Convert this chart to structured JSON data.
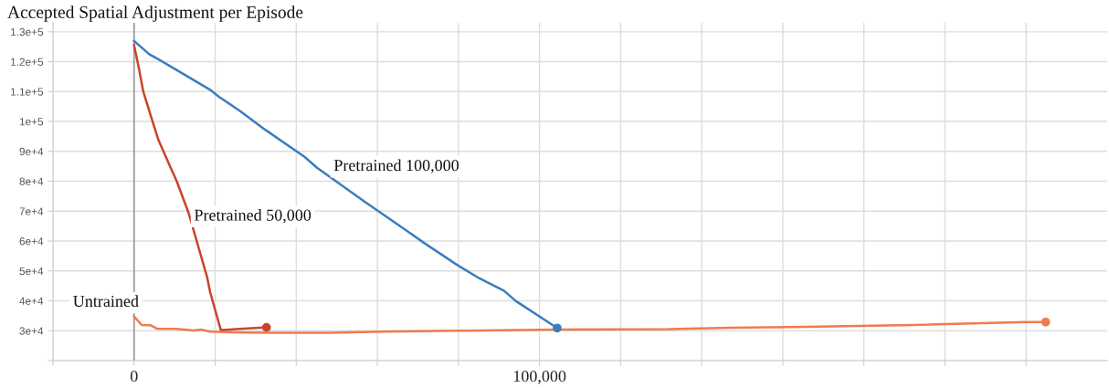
{
  "chart_data": {
    "type": "line",
    "title": "Accepted Spatial Adjustment per Episode",
    "xlim": [
      -20000,
      240000
    ],
    "xticks": [
      {
        "value": -20000,
        "label": null
      },
      0,
      {
        "value": 20000,
        "label": null
      },
      {
        "value": 40000,
        "label": null
      },
      {
        "value": 60000,
        "label": null
      },
      {
        "value": 80000,
        "label": null
      },
      {
        "value": 100000,
        "label": "100,000"
      },
      {
        "value": 120000,
        "label": null
      },
      {
        "value": 140000,
        "label": null
      },
      {
        "value": 160000,
        "label": null
      },
      {
        "value": 180000,
        "label": null
      },
      {
        "value": 200000,
        "label": null
      },
      {
        "value": 220000,
        "label": null
      }
    ],
    "ylim": [
      20000,
      133000
    ],
    "yticks": [
      {
        "value": 20000,
        "label": null
      },
      {
        "value": 30000,
        "label": "3e+4"
      },
      {
        "value": 40000,
        "label": "4e+4"
      },
      {
        "value": 50000,
        "label": "5e+4"
      },
      {
        "value": 60000,
        "label": "6e+4"
      },
      {
        "value": 70000,
        "label": "7e+4"
      },
      {
        "value": 80000,
        "label": "8e+4"
      },
      {
        "value": 90000,
        "label": "9e+4"
      },
      {
        "value": 100000,
        "label": "1e+5"
      },
      {
        "value": 110000,
        "label": "1.1e+5"
      },
      {
        "value": 120000,
        "label": "1.2e+5"
      },
      {
        "value": 130000,
        "label": "1.3e+5"
      }
    ],
    "grid": true,
    "ref_lines": [
      {
        "axis": "x",
        "value": 0,
        "color": "#999999"
      }
    ],
    "series": [
      {
        "name": "Untrained",
        "color": "#ef7b4d",
        "x": [
          0,
          1870,
          4120,
          5630,
          10500,
          14640,
          16500,
          18760,
          27030,
          34530,
          48040,
          61560,
          79570,
          104350,
          132100,
          139600,
          147150,
          162160,
          192200,
          219950,
          224840
        ],
        "values": [
          34800,
          31900,
          31800,
          30700,
          30600,
          30100,
          30400,
          29700,
          29400,
          29300,
          29300,
          29700,
          30000,
          30400,
          30500,
          30800,
          31000,
          31200,
          31900,
          32900,
          32900
        ]
      },
      {
        "name": "Pretrained 50,000",
        "color": "#c9442a",
        "x": [
          0,
          1130,
          2250,
          4120,
          6000,
          9000,
          10500,
          13450,
          18000,
          18760,
          21400,
          27030,
          32660
        ],
        "values": [
          125500,
          118200,
          110100,
          101900,
          93800,
          84600,
          80100,
          69400,
          48000,
          42900,
          30200,
          30700,
          31100
        ]
      },
      {
        "name": "Pretrained 100,000",
        "color": "#3a7dbf",
        "x": [
          0,
          3740,
          6760,
          18760,
          21000,
          26260,
          32270,
          42030,
          45050,
          57050,
          65300,
          71700,
          79570,
          85200,
          91200,
          94200,
          104350
        ],
        "values": [
          126900,
          122500,
          120200,
          110600,
          108200,
          103400,
          97300,
          88200,
          84600,
          73000,
          65300,
          59200,
          52100,
          47500,
          43400,
          39900,
          30900
        ]
      }
    ]
  }
}
